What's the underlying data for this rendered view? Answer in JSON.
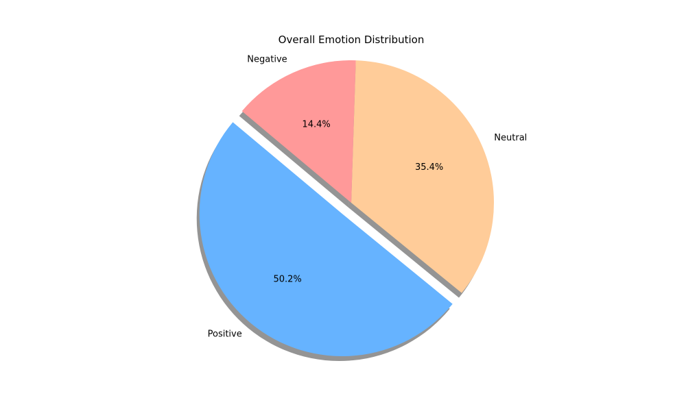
{
  "chart_data": {
    "type": "pie",
    "title": "Overall Emotion Distribution",
    "start_angle_deg": 140,
    "direction": "counterclockwise",
    "shadow": true,
    "slices": [
      {
        "label": "Positive",
        "value": 50.2,
        "pct_label": "50.2%",
        "color": "#66b3ff",
        "exploded": true
      },
      {
        "label": "Neutral",
        "value": 35.4,
        "pct_label": "35.4%",
        "color": "#ffcc99",
        "exploded": false
      },
      {
        "label": "Negative",
        "value": 14.4,
        "pct_label": "14.4%",
        "color": "#ff9999",
        "exploded": false
      }
    ]
  }
}
